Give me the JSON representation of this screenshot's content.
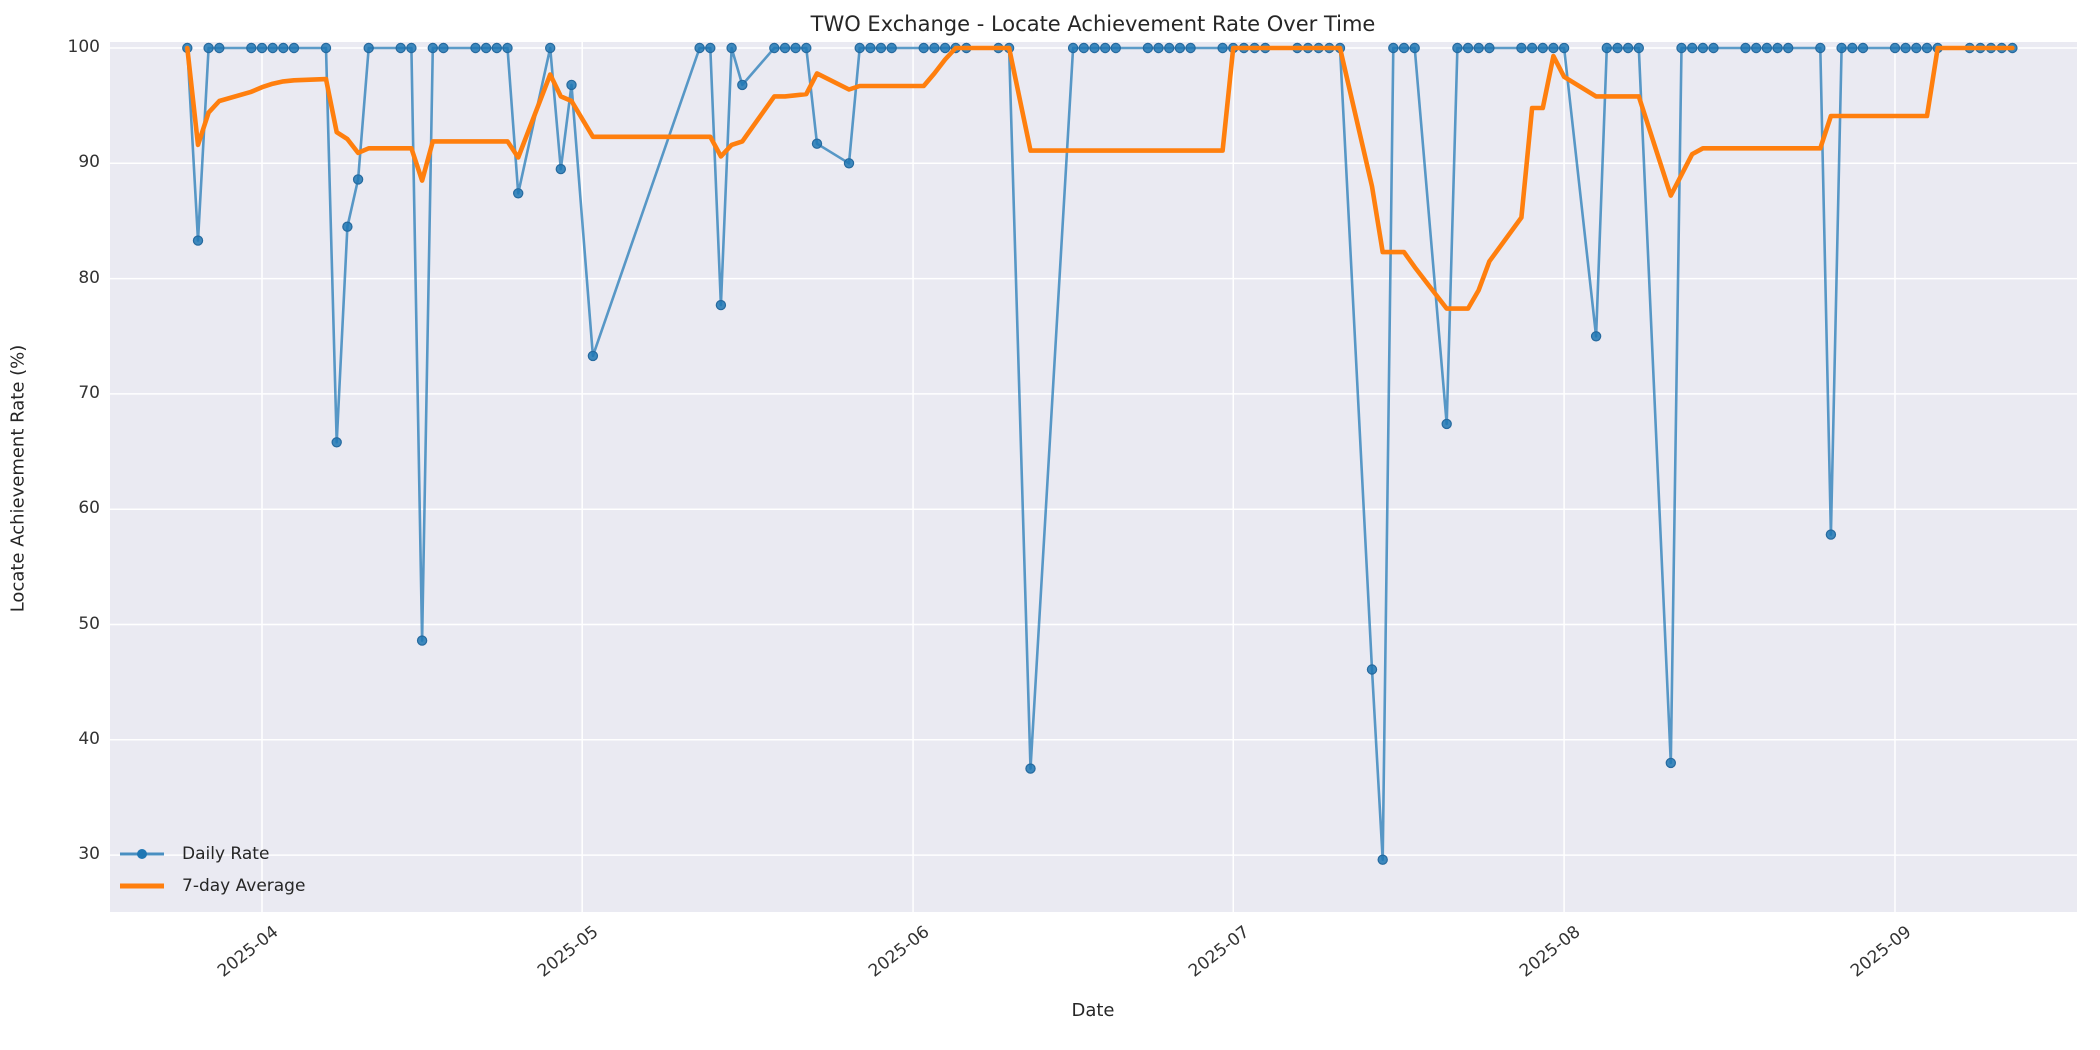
{
  "title": "TWO Exchange - Locate Achievement Rate Over Time",
  "chart_data": {
    "type": "line",
    "title": "TWO Exchange - Locate Achievement Rate Over Time",
    "xlabel": "Date",
    "ylabel": "Locate Achievement Rate (%)",
    "x_tick_labels": [
      "2025-04",
      "2025-05",
      "2025-06",
      "2025-07",
      "2025-08",
      "2025-09"
    ],
    "x_tick_dates": [
      "2025-04-01",
      "2025-05-01",
      "2025-06-01",
      "2025-07-01",
      "2025-08-01",
      "2025-09-01"
    ],
    "y_ticks": [
      30,
      40,
      50,
      60,
      70,
      80,
      90,
      100
    ],
    "ylim": [
      25.1,
      100.6
    ],
    "grid": true,
    "legend_position": "lower left",
    "background": "#eaeaf2",
    "grid_color": "#ffffff",
    "series": [
      {
        "name": "Daily Rate",
        "color": "#1f77b4",
        "style": "line+markers",
        "line_width": 2.6,
        "line_opacity": 0.72,
        "marker_radius": 4.6
      },
      {
        "name": "7-day Average",
        "color": "#ff7f0e",
        "style": "line",
        "line_width": 4.6,
        "line_opacity": 1.0
      }
    ],
    "points_format": [
      "date",
      "daily_rate_pct",
      "avg7_pct"
    ],
    "points": [
      [
        "2025-03-25",
        100,
        100
      ],
      [
        "2025-03-26",
        83.3,
        91.6
      ],
      [
        "2025-03-27",
        100,
        94.4
      ],
      [
        "2025-03-28",
        100,
        95.4
      ],
      [
        "2025-03-31",
        100,
        96.2
      ],
      [
        "2025-04-01",
        100,
        96.6
      ],
      [
        "2025-04-02",
        100,
        96.9
      ],
      [
        "2025-04-03",
        100,
        97.1
      ],
      [
        "2025-04-04",
        100,
        97.2
      ],
      [
        "2025-04-07",
        100,
        97.3
      ],
      [
        "2025-04-08",
        65.8,
        92.7
      ],
      [
        "2025-04-09",
        84.5,
        92.1
      ],
      [
        "2025-04-10",
        88.6,
        90.9
      ],
      [
        "2025-04-11",
        100,
        91.3
      ],
      [
        "2025-04-14",
        100,
        91.3
      ],
      [
        "2025-04-15",
        100,
        91.3
      ],
      [
        "2025-04-16",
        48.6,
        88.5
      ],
      [
        "2025-04-17",
        100,
        91.9
      ],
      [
        "2025-04-18",
        100,
        91.9
      ],
      [
        "2025-04-21",
        100,
        91.9
      ],
      [
        "2025-04-22",
        100,
        91.9
      ],
      [
        "2025-04-23",
        100,
        91.9
      ],
      [
        "2025-04-24",
        100,
        91.9
      ],
      [
        "2025-04-25",
        87.4,
        90.5
      ],
      [
        "2025-04-28",
        100,
        97.7
      ],
      [
        "2025-04-29",
        89.5,
        95.8
      ],
      [
        "2025-04-30",
        96.8,
        95.4
      ],
      [
        "2025-05-02",
        73.3,
        92.3
      ],
      [
        "2025-05-12",
        100,
        92.3
      ],
      [
        "2025-05-13",
        100,
        92.3
      ],
      [
        "2025-05-14",
        77.7,
        90.6
      ],
      [
        "2025-05-15",
        100,
        91.6
      ],
      [
        "2025-05-16",
        96.8,
        91.9
      ],
      [
        "2025-05-19",
        100,
        95.8
      ],
      [
        "2025-05-20",
        100,
        95.8
      ],
      [
        "2025-05-21",
        100,
        95.9
      ],
      [
        "2025-05-22",
        100,
        96.0
      ],
      [
        "2025-05-23",
        91.7,
        97.8
      ],
      [
        "2025-05-26",
        90.0,
        96.4
      ],
      [
        "2025-05-27",
        100,
        96.7
      ],
      [
        "2025-05-28",
        100,
        96.7
      ],
      [
        "2025-05-29",
        100,
        96.7
      ],
      [
        "2025-05-30",
        100,
        96.7
      ],
      [
        "2025-06-02",
        100,
        96.7
      ],
      [
        "2025-06-03",
        100,
        97.8
      ],
      [
        "2025-06-04",
        100,
        99.0
      ],
      [
        "2025-06-05",
        100,
        100
      ],
      [
        "2025-06-06",
        100,
        100
      ],
      [
        "2025-06-09",
        100,
        100
      ],
      [
        "2025-06-10",
        100,
        100
      ],
      [
        "2025-06-12",
        37.5,
        91.1
      ],
      [
        "2025-06-16",
        100,
        91.1
      ],
      [
        "2025-06-17",
        100,
        91.1
      ],
      [
        "2025-06-18",
        100,
        91.1
      ],
      [
        "2025-06-19",
        100,
        91.1
      ],
      [
        "2025-06-20",
        100,
        91.1
      ],
      [
        "2025-06-23",
        100,
        91.1
      ],
      [
        "2025-06-24",
        100,
        91.1
      ],
      [
        "2025-06-25",
        100,
        91.1
      ],
      [
        "2025-06-26",
        100,
        91.1
      ],
      [
        "2025-06-27",
        100,
        91.1
      ],
      [
        "2025-06-30",
        100,
        91.1
      ],
      [
        "2025-07-01",
        100,
        100
      ],
      [
        "2025-07-02",
        100,
        100
      ],
      [
        "2025-07-03",
        100,
        100
      ],
      [
        "2025-07-04",
        100,
        100
      ],
      [
        "2025-07-07",
        100,
        100
      ],
      [
        "2025-07-08",
        100,
        100
      ],
      [
        "2025-07-09",
        100,
        100
      ],
      [
        "2025-07-10",
        100,
        100
      ],
      [
        "2025-07-11",
        100,
        100
      ],
      [
        "2025-07-14",
        46.1,
        88.0
      ],
      [
        "2025-07-15",
        29.6,
        82.3
      ],
      [
        "2025-07-16",
        100,
        82.3
      ],
      [
        "2025-07-17",
        100,
        82.3
      ],
      [
        "2025-07-18",
        100,
        81.0
      ],
      [
        "2025-07-21",
        67.4,
        77.4
      ],
      [
        "2025-07-22",
        100,
        77.4
      ],
      [
        "2025-07-23",
        100,
        77.4
      ],
      [
        "2025-07-24",
        100,
        79.0
      ],
      [
        "2025-07-25",
        100,
        81.5
      ],
      [
        "2025-07-28",
        100,
        85.3
      ],
      [
        "2025-07-29",
        100,
        94.8
      ],
      [
        "2025-07-30",
        100,
        94.8
      ],
      [
        "2025-07-31",
        100,
        99.3
      ],
      [
        "2025-08-01",
        100,
        97.5
      ],
      [
        "2025-08-04",
        75.0,
        95.8
      ],
      [
        "2025-08-05",
        100,
        95.8
      ],
      [
        "2025-08-06",
        100,
        95.8
      ],
      [
        "2025-08-07",
        100,
        95.8
      ],
      [
        "2025-08-08",
        100,
        95.8
      ],
      [
        "2025-08-11",
        38.0,
        87.2
      ],
      [
        "2025-08-12",
        100,
        89.0
      ],
      [
        "2025-08-13",
        100,
        90.8
      ],
      [
        "2025-08-14",
        100,
        91.3
      ],
      [
        "2025-08-15",
        100,
        91.3
      ],
      [
        "2025-08-18",
        100,
        91.3
      ],
      [
        "2025-08-19",
        100,
        91.3
      ],
      [
        "2025-08-20",
        100,
        91.3
      ],
      [
        "2025-08-21",
        100,
        91.3
      ],
      [
        "2025-08-22",
        100,
        91.3
      ],
      [
        "2025-08-25",
        100,
        91.3
      ],
      [
        "2025-08-26",
        57.8,
        94.1
      ],
      [
        "2025-08-27",
        100,
        94.1
      ],
      [
        "2025-08-28",
        100,
        94.1
      ],
      [
        "2025-08-29",
        100,
        94.1
      ],
      [
        "2025-09-01",
        100,
        94.1
      ],
      [
        "2025-09-02",
        100,
        94.1
      ],
      [
        "2025-09-03",
        100,
        94.1
      ],
      [
        "2025-09-04",
        100,
        94.1
      ],
      [
        "2025-09-05",
        100,
        100
      ],
      [
        "2025-09-08",
        100,
        100
      ],
      [
        "2025-09-09",
        100,
        100
      ],
      [
        "2025-09-10",
        100,
        100
      ],
      [
        "2025-09-11",
        100,
        100
      ],
      [
        "2025-09-12",
        100,
        100
      ]
    ]
  },
  "legend": {
    "items": [
      {
        "label": "Daily Rate"
      },
      {
        "label": "7-day Average"
      }
    ]
  }
}
